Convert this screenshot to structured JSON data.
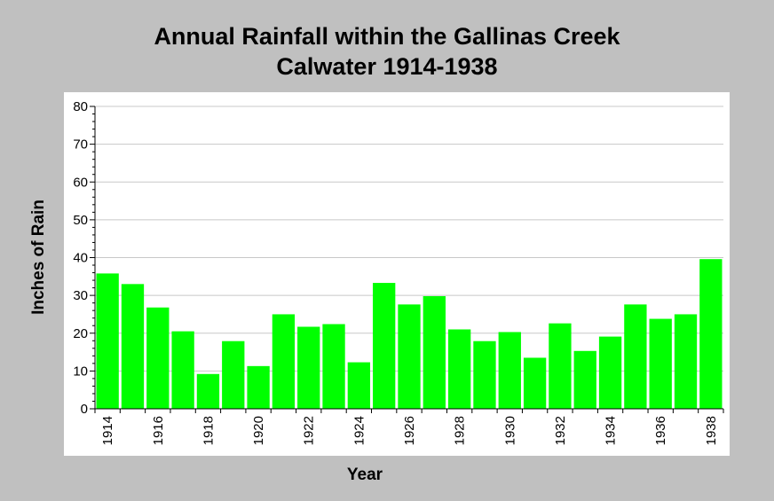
{
  "chart_data": {
    "type": "bar",
    "title_lines": [
      "Annual Rainfall within the Gallinas Creek",
      "Calwater 1914-1938"
    ],
    "xlabel": "Year",
    "ylabel": "Inches of Rain",
    "ylim": [
      0,
      80
    ],
    "yticks": [
      0,
      10,
      20,
      30,
      40,
      50,
      60,
      70,
      80
    ],
    "grid": true,
    "legend": "none",
    "bar_color": "#00ff00",
    "categories": [
      "1914",
      "1915",
      "1916",
      "1917",
      "1918",
      "1919",
      "1920",
      "1921",
      "1922",
      "1923",
      "1924",
      "1925",
      "1926",
      "1927",
      "1928",
      "1929",
      "1930",
      "1931",
      "1932",
      "1933",
      "1934",
      "1935",
      "1936",
      "1937",
      "1938"
    ],
    "xtick_labels": [
      "1914",
      "",
      "1916",
      "",
      "1918",
      "",
      "1920",
      "",
      "1922",
      "",
      "1924",
      "",
      "1926",
      "",
      "1928",
      "",
      "1930",
      "",
      "1932",
      "",
      "1934",
      "",
      "1936",
      "",
      "1938"
    ],
    "values": [
      35.8,
      33.0,
      26.8,
      20.5,
      9.2,
      17.9,
      11.3,
      25.0,
      21.7,
      22.4,
      12.3,
      33.3,
      27.6,
      29.8,
      21.0,
      17.9,
      20.3,
      13.5,
      22.6,
      15.3,
      19.1,
      27.6,
      23.8,
      25.0,
      39.6
    ]
  }
}
